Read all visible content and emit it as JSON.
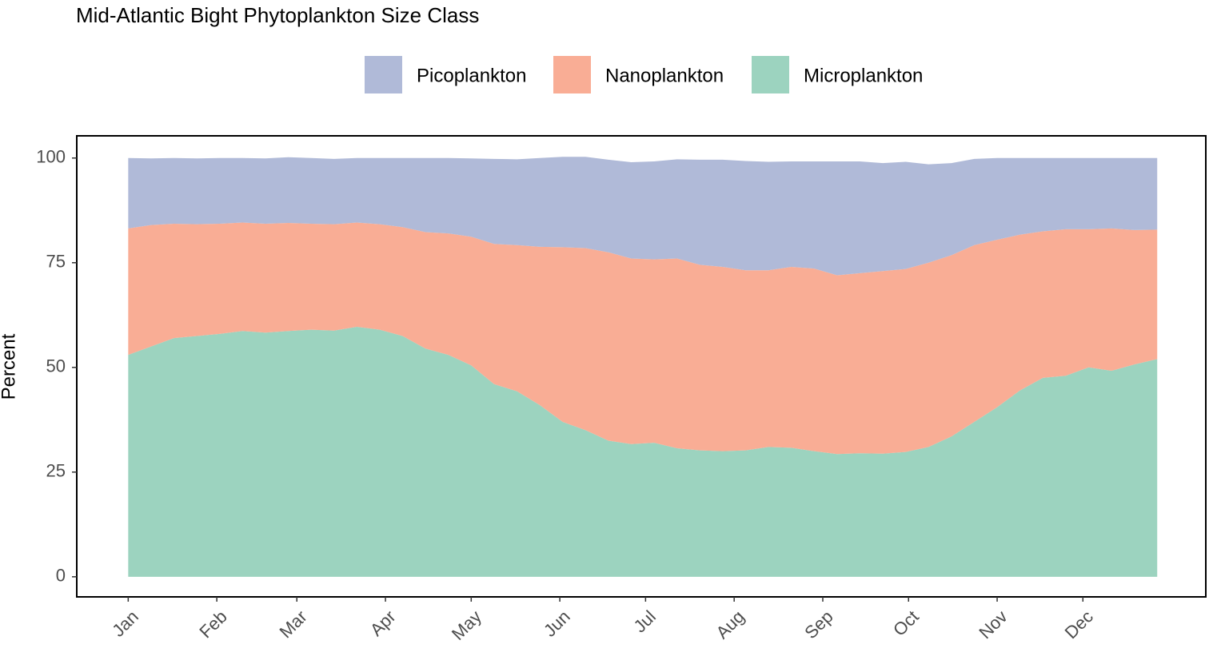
{
  "chart_data": {
    "type": "area",
    "stacked": true,
    "title": "Mid-Atlantic Bight Phytoplankton Size Class",
    "y_label": "Percent",
    "x": [
      1,
      9,
      17,
      25,
      33,
      41,
      49,
      57,
      65,
      73,
      81,
      89,
      97,
      105,
      113,
      121,
      129,
      137,
      145,
      153,
      161,
      169,
      177,
      185,
      193,
      201,
      209,
      217,
      225,
      233,
      241,
      249,
      257,
      265,
      273,
      281,
      289,
      297,
      305,
      313,
      321,
      329,
      337,
      345,
      353,
      361
    ],
    "series": [
      {
        "name": "Picoplankton",
        "color": "#b0bad8",
        "values": [
          16.8,
          15.9,
          15.7,
          15.7,
          15.7,
          15.4,
          15.6,
          15.7,
          15.7,
          15.6,
          15.4,
          15.8,
          16.5,
          17.7,
          18.0,
          18.7,
          20.3,
          20.5,
          21.2,
          21.6,
          21.8,
          22.1,
          23.0,
          23.4,
          23.7,
          25.1,
          25.6,
          26.1,
          25.9,
          25.2,
          25.6,
          27.2,
          26.7,
          25.8,
          25.6,
          23.5,
          22.0,
          20.6,
          19.5,
          18.3,
          17.5,
          17.0,
          17.0,
          16.8,
          17.2,
          17.1
        ]
      },
      {
        "name": "Nanoplankton",
        "color": "#f9ad95",
        "values": [
          30.2,
          29.0,
          27.3,
          26.7,
          26.3,
          25.9,
          26.0,
          25.8,
          25.3,
          25.4,
          24.9,
          25.2,
          26.0,
          27.8,
          29.0,
          30.7,
          33.5,
          34.9,
          37.8,
          41.7,
          43.5,
          45.0,
          44.3,
          43.8,
          45.3,
          44.3,
          44.0,
          43.0,
          42.2,
          43.2,
          43.6,
          42.7,
          43.0,
          43.6,
          43.7,
          44.0,
          43.3,
          42.2,
          40.0,
          37.2,
          35.0,
          35.0,
          33.0,
          34.0,
          32.1,
          30.9
        ]
      },
      {
        "name": "Microplankton",
        "color": "#9cd3bf",
        "values": [
          53,
          55,
          57,
          57.5,
          58,
          58.7,
          58.3,
          58.7,
          59,
          58.8,
          59.7,
          59,
          57.5,
          54.5,
          53,
          50.5,
          46,
          44.3,
          41,
          37,
          35,
          32.5,
          31.7,
          32,
          30.7,
          30.2,
          30,
          30.2,
          31,
          30.8,
          30,
          29.3,
          29.5,
          29.4,
          29.8,
          31,
          33.5,
          37,
          40.5,
          44.5,
          47.5,
          48,
          50,
          49.2,
          50.7,
          52
        ]
      }
    ],
    "xlim": [
      -17,
      378
    ],
    "xticks": [
      {
        "value": 1,
        "label": "Jan"
      },
      {
        "value": 32,
        "label": "Feb"
      },
      {
        "value": 60,
        "label": "Mar"
      },
      {
        "value": 91,
        "label": "Apr"
      },
      {
        "value": 121,
        "label": "May"
      },
      {
        "value": 152,
        "label": "Jun"
      },
      {
        "value": 182,
        "label": "Jul"
      },
      {
        "value": 213,
        "label": "Aug"
      },
      {
        "value": 244,
        "label": "Sep"
      },
      {
        "value": 274,
        "label": "Oct"
      },
      {
        "value": 305,
        "label": "Nov"
      },
      {
        "value": 335,
        "label": "Dec"
      }
    ],
    "ylim": [
      -4.8,
      105.3
    ],
    "yticks": [
      0,
      25,
      50,
      75,
      100
    ],
    "grid": false,
    "legend": "top"
  }
}
